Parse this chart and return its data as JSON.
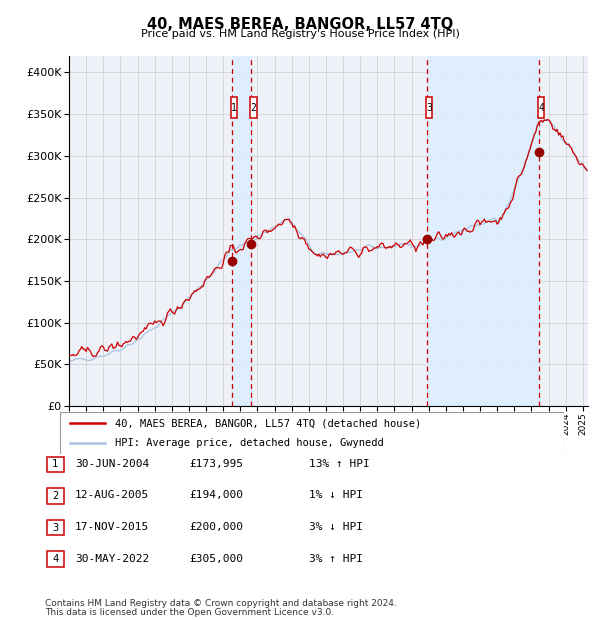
{
  "title": "40, MAES BEREA, BANGOR, LL57 4TQ",
  "subtitle": "Price paid vs. HM Land Registry's House Price Index (HPI)",
  "legend_line1": "40, MAES BEREA, BANGOR, LL57 4TQ (detached house)",
  "legend_line2": "HPI: Average price, detached house, Gwynedd",
  "footer1": "Contains HM Land Registry data © Crown copyright and database right 2024.",
  "footer2": "This data is licensed under the Open Government Licence v3.0.",
  "transactions": [
    {
      "num": 1,
      "date_year": 2004.497,
      "price": 173995
    },
    {
      "num": 2,
      "date_year": 2005.618,
      "price": 194000
    },
    {
      "num": 3,
      "date_year": 2015.877,
      "price": 200000
    },
    {
      "num": 4,
      "date_year": 2022.414,
      "price": 305000
    }
  ],
  "table_rows": [
    {
      "num": 1,
      "date_str": "30-JUN-2004",
      "price_str": "£173,995",
      "hpi_str": "13% ↑ HPI"
    },
    {
      "num": 2,
      "date_str": "12-AUG-2005",
      "price_str": "£194,000",
      "hpi_str": "1% ↓ HPI"
    },
    {
      "num": 3,
      "date_str": "17-NOV-2015",
      "price_str": "£200,000",
      "hpi_str": "3% ↓ HPI"
    },
    {
      "num": 4,
      "date_str": "30-MAY-2022",
      "price_str": "£305,000",
      "hpi_str": "3% ↑ HPI"
    }
  ],
  "hpi_color": "#aac4e0",
  "price_color": "#cc0000",
  "dot_color": "#990000",
  "vline_color": "#cc0000",
  "shade_color": "#ddeeff",
  "grid_color": "#cccccc",
  "bg_color": "#eef2f8",
  "box_color": "#cc0000",
  "ylim": [
    0,
    420000
  ],
  "yticks": [
    0,
    50000,
    100000,
    150000,
    200000,
    250000,
    300000,
    350000,
    400000
  ],
  "xstart": 1995.0,
  "xend": 2025.3
}
